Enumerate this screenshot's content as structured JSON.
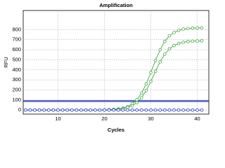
{
  "chart_data": {
    "type": "line",
    "title": "Amplification",
    "x_label": "Cycles",
    "y_label": "RFU",
    "x": [
      3,
      4,
      5,
      6,
      7,
      8,
      9,
      10,
      11,
      12,
      13,
      14,
      15,
      16,
      17,
      18,
      19,
      20,
      21,
      22,
      23,
      24,
      25,
      26,
      27,
      28,
      29,
      30,
      31,
      32,
      33,
      34,
      35,
      36,
      37,
      38,
      39,
      40,
      41
    ],
    "series": [
      {
        "color": "#2e9e2e",
        "values": [
          0,
          0,
          0,
          0,
          0,
          0,
          0,
          0,
          0,
          0,
          0,
          0,
          0,
          0,
          0,
          0,
          0,
          2,
          4,
          7,
          12,
          20,
          35,
          61,
          103,
          169,
          260,
          374,
          494,
          599,
          683,
          739,
          771,
          792,
          805,
          811,
          815,
          817,
          818
        ]
      },
      {
        "color": "#2e9e2e",
        "values": [
          0,
          0,
          0,
          0,
          0,
          0,
          0,
          0,
          0,
          0,
          0,
          0,
          0,
          0,
          0,
          0,
          0,
          1,
          2,
          4,
          8,
          14,
          25,
          43,
          74,
          123,
          194,
          285,
          386,
          479,
          556,
          608,
          642,
          662,
          674,
          681,
          685,
          687,
          688
        ]
      },
      {
        "color": "#8a2be2",
        "values": [
          0,
          0,
          0,
          0,
          0,
          0,
          0,
          0,
          0,
          0,
          0,
          0,
          0,
          0,
          0,
          0,
          0,
          0,
          0,
          0,
          0,
          0,
          0,
          0,
          0,
          0,
          0,
          0,
          0,
          0,
          0,
          0,
          0,
          0,
          0,
          0,
          0,
          0,
          0
        ]
      },
      {
        "color": "#2040d0",
        "values": [
          0,
          0,
          0,
          0,
          0,
          0,
          0,
          0,
          0,
          0,
          0,
          0,
          0,
          0,
          0,
          0,
          0,
          0,
          0,
          0,
          0,
          0,
          0,
          0,
          0,
          0,
          0,
          0,
          0,
          0,
          0,
          0,
          0,
          0,
          0,
          0,
          0,
          0,
          0
        ]
      }
    ],
    "threshold_lines": [
      {
        "value": 95,
        "color": "#3050e0"
      },
      {
        "value": 85,
        "color": "#101080"
      }
    ],
    "xlim": [
      2.5,
      42.5
    ],
    "xticks": [
      10,
      20,
      30,
      40
    ],
    "ylim": [
      -40,
      990
    ],
    "yticks": [
      0,
      100,
      200,
      300,
      400,
      500,
      600,
      700,
      800
    ],
    "grid": true
  }
}
